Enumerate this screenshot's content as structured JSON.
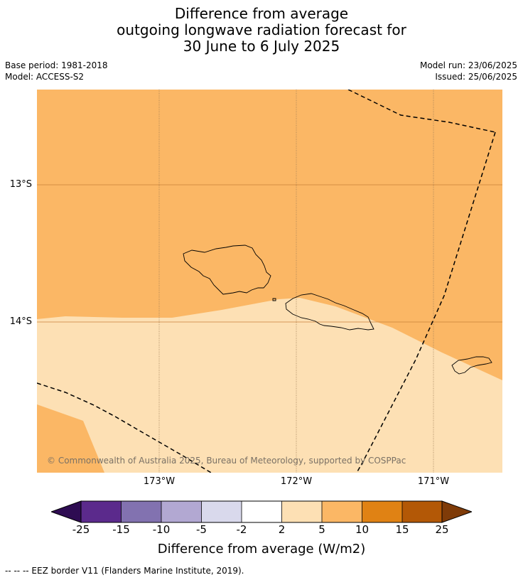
{
  "title": {
    "line1": "Difference from average",
    "line2": "outgoing longwave radiation forecast for",
    "line3": "30 June to 6 July 2025"
  },
  "meta": {
    "base_period": "Base period: 1981-2018",
    "model": "Model: ACCESS-S2",
    "model_run": "Model run: 23/06/2025",
    "issued": "Issued: 25/06/2025"
  },
  "map": {
    "lat_labels": [
      "13°S",
      "14°S"
    ],
    "lon_labels": [
      "173°W",
      "172°W",
      "171°W"
    ],
    "copyright": "© Commonwealth of Australia 2025, Bureau of Meteorology, supported by COSPPac",
    "region_upper_category": "5 to 10",
    "region_lower_category": "2 to 5"
  },
  "colorbar": {
    "label": "Difference from average (W/m2)",
    "ticks": [
      "-25",
      "-15",
      "-10",
      "-5",
      "-2",
      "2",
      "5",
      "10",
      "15",
      "25"
    ],
    "colors": [
      "#2e0c52",
      "#5b2a8c",
      "#8272b0",
      "#b2a8d2",
      "#d9d9ec",
      "#ffffff",
      "#fde0b4",
      "#fbb765",
      "#e08214",
      "#b35806",
      "#7f3b08"
    ]
  },
  "legend_note": "--  --  -- EEZ border V11 (Flanders Marine Institute, 2019)."
}
